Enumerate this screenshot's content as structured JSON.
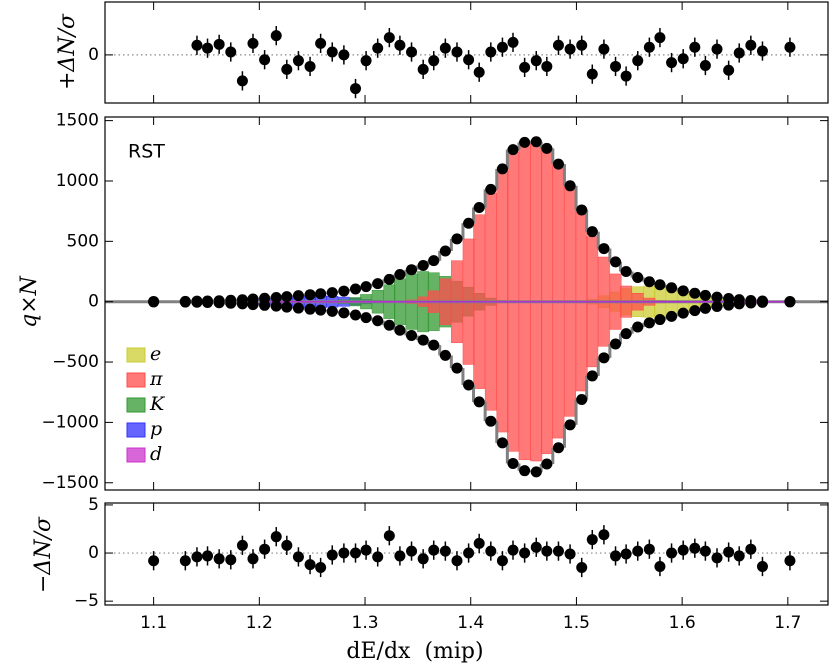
{
  "chart_data": {
    "type": "fit-with-residuals",
    "xlabel": "dE/dx  (mip)",
    "annotation": "RST",
    "xlim": [
      1.054,
      1.738
    ],
    "xticks": [
      1.1,
      1.2,
      1.3,
      1.4,
      1.5,
      1.6,
      1.7
    ],
    "x": [
      1.1,
      1.13,
      1.141,
      1.151,
      1.162,
      1.173,
      1.184,
      1.194,
      1.205,
      1.216,
      1.226,
      1.237,
      1.248,
      1.258,
      1.269,
      1.28,
      1.291,
      1.301,
      1.312,
      1.323,
      1.333,
      1.344,
      1.355,
      1.365,
      1.376,
      1.387,
      1.398,
      1.408,
      1.419,
      1.43,
      1.44,
      1.451,
      1.462,
      1.472,
      1.483,
      1.494,
      1.505,
      1.515,
      1.526,
      1.537,
      1.547,
      1.558,
      1.569,
      1.579,
      1.59,
      1.601,
      1.612,
      1.622,
      1.633,
      1.644,
      1.654,
      1.665,
      1.676,
      1.702
    ],
    "top": {
      "type": "residual",
      "ylabel": "+ΔN/σ",
      "ylim": [
        -5,
        5.5
      ],
      "yticks": [
        0
      ],
      "error": 1,
      "values": [
        null,
        null,
        1.0,
        0.7,
        1.1,
        0.3,
        -2.7,
        1.2,
        -0.5,
        2.0,
        -1.5,
        -0.6,
        -1.2,
        1.2,
        0.3,
        0.0,
        -3.5,
        -0.6,
        0.7,
        1.8,
        1.0,
        0.3,
        -1.5,
        -0.6,
        0.7,
        0.3,
        -0.5,
        -1.8,
        0.3,
        0.8,
        1.3,
        -1.3,
        -0.6,
        -1.2,
        1.0,
        0.6,
        1.0,
        -2.0,
        0.6,
        -1.2,
        -2.2,
        -0.6,
        0.8,
        1.8,
        -0.8,
        -0.4,
        0.8,
        -1.1,
        0.6,
        -1.6,
        0.2,
        1.0,
        0.4,
        0.8
      ]
    },
    "main": {
      "type": "histogram",
      "ylabel": "q×N",
      "ylim": [
        -1560,
        1530
      ],
      "yticks": [
        {
          "value": -1500,
          "label": "−1500"
        },
        {
          "value": -1000,
          "label": "−1000"
        },
        {
          "value": -500,
          "label": "−500"
        },
        0,
        500,
        1000,
        1500
      ],
      "positive": [
        2,
        3,
        5,
        6,
        8,
        12,
        16,
        22,
        28,
        35,
        42,
        50,
        58,
        66,
        75,
        88,
        105,
        125,
        150,
        185,
        225,
        265,
        300,
        340,
        420,
        520,
        650,
        780,
        930,
        1100,
        1260,
        1320,
        1325,
        1270,
        1140,
        960,
        760,
        580,
        440,
        330,
        250,
        200,
        165,
        140,
        115,
        90,
        70,
        52,
        38,
        26,
        17,
        10,
        6,
        2
      ],
      "negative": [
        -2,
        -3,
        -5,
        -7,
        -9,
        -13,
        -18,
        -24,
        -30,
        -37,
        -45,
        -53,
        -62,
        -70,
        -80,
        -93,
        -110,
        -132,
        -158,
        -195,
        -237,
        -280,
        -318,
        -360,
        -445,
        -550,
        -690,
        -830,
        -990,
        -1170,
        -1340,
        -1400,
        -1410,
        -1345,
        -1210,
        -1020,
        -810,
        -615,
        -465,
        -350,
        -265,
        -210,
        -175,
        -148,
        -122,
        -95,
        -74,
        -55,
        -40,
        -28,
        -18,
        -11,
        -6,
        -2
      ],
      "series": [
        {
          "name": "e",
          "color": "#cccc33",
          "values": [
            0,
            0,
            0,
            0,
            0,
            0,
            0,
            0,
            0,
            0,
            0,
            0,
            0,
            0,
            0,
            0,
            0,
            0,
            0,
            0,
            0,
            0,
            0,
            0,
            0,
            0,
            0,
            0,
            0,
            0,
            0,
            0,
            0,
            0,
            0,
            0,
            5,
            20,
            50,
            80,
            110,
            125,
            130,
            125,
            110,
            88,
            68,
            50,
            36,
            25,
            16,
            10,
            6,
            2
          ]
        },
        {
          "name": "π",
          "color": "#ff4c4c",
          "values": [
            0,
            0,
            0,
            0,
            0,
            0,
            0,
            0,
            0,
            0,
            0,
            0,
            0,
            0,
            0,
            0,
            0,
            0,
            0,
            0,
            5,
            15,
            40,
            90,
            190,
            340,
            520,
            720,
            900,
            1080,
            1240,
            1310,
            1320,
            1260,
            1130,
            950,
            740,
            540,
            370,
            230,
            130,
            70,
            30,
            10,
            0,
            0,
            0,
            0,
            0,
            0,
            0,
            0,
            0,
            0
          ]
        },
        {
          "name": "K",
          "color": "#339933",
          "values": [
            0,
            0,
            0,
            0,
            0,
            0,
            0,
            0,
            0,
            0,
            0,
            0,
            0,
            0,
            5,
            15,
            35,
            60,
            95,
            140,
            190,
            230,
            250,
            240,
            210,
            170,
            120,
            70,
            30,
            10,
            0,
            0,
            0,
            0,
            0,
            0,
            0,
            0,
            0,
            0,
            0,
            0,
            0,
            0,
            0,
            0,
            0,
            0,
            0,
            0,
            0,
            0,
            0,
            0
          ]
        },
        {
          "name": "p",
          "color": "#3333ff",
          "values": [
            0,
            0,
            0,
            3,
            6,
            10,
            14,
            20,
            26,
            33,
            40,
            46,
            50,
            50,
            45,
            38,
            28,
            18,
            10,
            4,
            0,
            0,
            0,
            0,
            0,
            0,
            0,
            0,
            0,
            0,
            0,
            0,
            0,
            0,
            0,
            0,
            0,
            0,
            0,
            0,
            0,
            0,
            0,
            0,
            0,
            0,
            0,
            0,
            0,
            0,
            0,
            0,
            0,
            0
          ]
        },
        {
          "name": "d",
          "color": "#cc33cc",
          "values": [
            2,
            3,
            4,
            4,
            3,
            3,
            2,
            2,
            1,
            0,
            0,
            0,
            0,
            0,
            0,
            0,
            0,
            0,
            0,
            0,
            0,
            0,
            0,
            0,
            0,
            0,
            0,
            0,
            0,
            0,
            0,
            0,
            0,
            0,
            0,
            0,
            0,
            0,
            0,
            0,
            0,
            0,
            0,
            0,
            0,
            0,
            0,
            0,
            0,
            0,
            0,
            0,
            0,
            0
          ]
        }
      ]
    },
    "bottom": {
      "type": "residual",
      "ylabel": "−ΔN/σ",
      "ylim": [
        -5.4,
        5.2
      ],
      "yticks": [
        {
          "value": -5,
          "label": "−5"
        },
        0,
        5
      ],
      "error": 1,
      "values": [
        -0.8,
        -0.8,
        -0.4,
        -0.3,
        -0.6,
        -0.7,
        0.8,
        -0.6,
        0.4,
        1.7,
        0.8,
        -0.4,
        -1.2,
        -1.5,
        -0.2,
        0.0,
        0.0,
        0.3,
        -0.4,
        1.8,
        -0.3,
        0.2,
        -0.6,
        0.3,
        0.2,
        -0.8,
        0.0,
        1.0,
        0.2,
        -0.8,
        0.3,
        0.0,
        0.6,
        0.2,
        0.2,
        -0.1,
        -1.5,
        1.4,
        1.9,
        -0.3,
        -0.1,
        0.2,
        0.4,
        -1.4,
        0.0,
        0.3,
        0.5,
        0.2,
        -0.5,
        0.1,
        -0.3,
        0.4,
        -1.4,
        -0.8
      ]
    }
  }
}
